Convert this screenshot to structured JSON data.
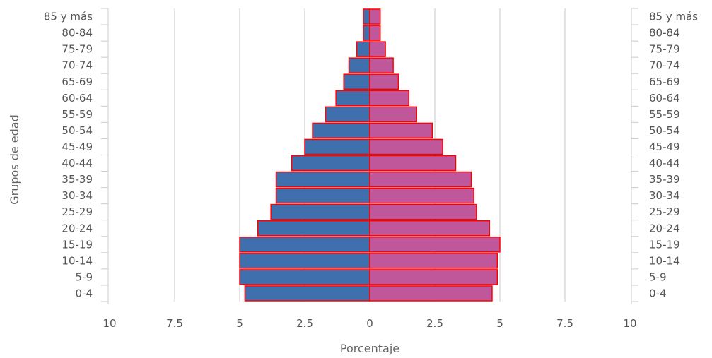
{
  "chart_data": {
    "type": "bar",
    "orientation": "horizontal",
    "subtype": "population-pyramid",
    "title": "",
    "xlabel": "Porcentaje",
    "ylabel": "Grupos de edad",
    "x_ticks": [
      "10",
      "7.5",
      "5",
      "2.5",
      "0",
      "2.5",
      "5",
      "7.5",
      "10"
    ],
    "xlim": [
      -10,
      10
    ],
    "grid": true,
    "categories": [
      "0-4",
      "5-9",
      "10-14",
      "15-19",
      "20-24",
      "25-29",
      "30-34",
      "35-39",
      "40-44",
      "45-49",
      "50-54",
      "55-59",
      "60-64",
      "65-69",
      "70-74",
      "75-79",
      "80-84",
      "85 y más"
    ],
    "series": [
      {
        "side": "left",
        "color": "#3f6fad",
        "values": [
          4.8,
          5.0,
          5.0,
          5.0,
          4.3,
          3.8,
          3.6,
          3.6,
          3.0,
          2.5,
          2.2,
          1.7,
          1.3,
          1.0,
          0.8,
          0.5,
          0.25,
          0.25
        ]
      },
      {
        "side": "right",
        "color": "#c0579a",
        "values": [
          4.7,
          4.9,
          4.9,
          5.0,
          4.6,
          4.1,
          4.0,
          3.9,
          3.3,
          2.8,
          2.4,
          1.8,
          1.5,
          1.1,
          0.9,
          0.6,
          0.4,
          0.4
        ]
      }
    ],
    "bar_border_color": "#ff0000"
  }
}
